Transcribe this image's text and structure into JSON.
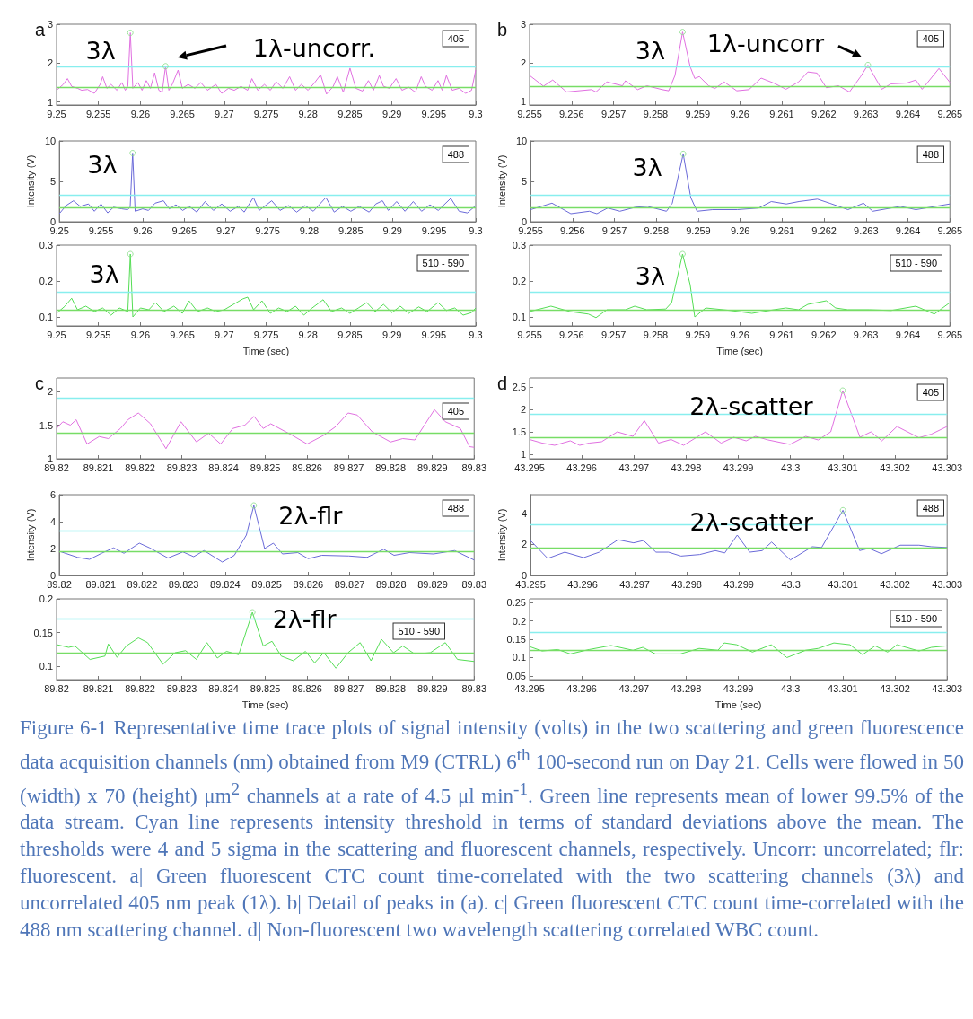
{
  "chart_data": [
    {
      "type": "line",
      "title": "a",
      "xlim": [
        9.25,
        9.3
      ],
      "xticks": [
        9.25,
        9.255,
        9.26,
        9.265,
        9.27,
        9.275,
        9.28,
        9.285,
        9.29,
        9.295,
        9.3
      ],
      "ylim": [
        0.92,
        3
      ],
      "yticks": [
        1,
        2,
        3
      ],
      "series": [
        {
          "color": "#e070e0",
          "marker": "none",
          "x": [
            9.25,
            9.2508,
            9.2513,
            9.2518,
            9.2525,
            9.253,
            9.2537,
            9.2545,
            9.2552,
            9.2555,
            9.256,
            9.2565,
            9.2572,
            9.2578,
            9.2582,
            9.2585,
            9.2588,
            9.2591,
            9.2597,
            9.2602,
            9.2607,
            9.2612,
            9.2617,
            9.2622,
            9.2626,
            9.263,
            9.2634,
            9.2638,
            9.2645,
            9.265,
            9.2657,
            9.2665,
            9.2672,
            9.268,
            9.269,
            9.2697,
            9.2705,
            9.2712,
            9.272,
            9.2728,
            9.2733,
            9.274,
            9.2748,
            9.2755,
            9.2762,
            9.277,
            9.2778,
            9.2785,
            9.2792,
            9.28,
            9.2808,
            9.2815,
            9.2822,
            9.283,
            9.2835,
            9.2842,
            9.285,
            9.2857,
            9.2865,
            9.2872,
            9.2878,
            9.2885,
            9.289,
            9.2897,
            9.2905,
            9.2912,
            9.292,
            9.2928,
            9.2935,
            9.294,
            9.2948,
            9.2955,
            9.296,
            9.2965,
            9.2972,
            9.298,
            9.2988,
            9.2995,
            9.3
          ],
          "values": [
            1.3,
            1.45,
            1.6,
            1.4,
            1.35,
            1.3,
            1.32,
            1.22,
            1.45,
            1.65,
            1.35,
            1.45,
            1.3,
            1.5,
            1.3,
            1.4,
            2.78,
            1.35,
            1.5,
            1.3,
            1.55,
            1.35,
            1.75,
            1.3,
            1.25,
            1.92,
            1.3,
            1.45,
            1.82,
            1.35,
            1.45,
            1.35,
            1.5,
            1.3,
            1.45,
            1.22,
            1.35,
            1.3,
            1.4,
            1.3,
            1.6,
            1.3,
            1.45,
            1.3,
            1.52,
            1.35,
            1.65,
            1.3,
            1.45,
            1.3,
            1.5,
            1.7,
            1.2,
            1.4,
            1.65,
            1.25,
            1.87,
            1.35,
            1.28,
            1.55,
            1.3,
            1.68,
            1.4,
            1.35,
            1.6,
            1.3,
            1.38,
            1.25,
            1.65,
            1.4,
            1.3,
            1.55,
            1.3,
            1.68,
            1.3,
            1.35,
            1.22,
            1.3,
            1.82
          ]
        },
        {
          "type": "scatter",
          "marker": "circle",
          "color": "#88dd88",
          "x": [
            9.2588,
            9.263
          ],
          "values": [
            2.78,
            1.92
          ]
        }
      ],
      "ref_lines": [
        {
          "axis": "y",
          "value": 1.9,
          "color": "#88eeee"
        },
        {
          "axis": "y",
          "value": 1.38,
          "color": "#77dd66"
        }
      ],
      "annotations": [
        {
          "text": "3λ",
          "x": 9.2588,
          "y": 2.78
        },
        "1λ-uncorr.",
        "405"
      ]
    },
    {
      "type": "line",
      "ylabel": "Intensity (V)",
      "xlim": [
        9.25,
        9.3
      ],
      "xticks": [
        9.25,
        9.255,
        9.26,
        9.265,
        9.27,
        9.275,
        9.28,
        9.285,
        9.29,
        9.295,
        9.3
      ],
      "ylim": [
        0,
        10
      ],
      "yticks": [
        0,
        5,
        10
      ],
      "series": [
        {
          "color": "#6a6ad8",
          "marker": "none",
          "x": [
            9.25,
            9.2508,
            9.2517,
            9.2525,
            9.2535,
            9.2542,
            9.255,
            9.2558,
            9.2565,
            9.2575,
            9.2582,
            9.2585,
            9.2588,
            9.2591,
            9.26,
            9.2607,
            9.2615,
            9.2625,
            9.2632,
            9.264,
            9.2648,
            9.2656,
            9.2665,
            9.2675,
            9.2685,
            9.2695,
            9.2705,
            9.2715,
            9.2722,
            9.2733,
            9.274,
            9.2755,
            9.2765,
            9.2775,
            9.2785,
            9.2795,
            9.2805,
            9.282,
            9.283,
            9.284,
            9.285,
            9.286,
            9.2872,
            9.288,
            9.2888,
            9.2895,
            9.2905,
            9.2915,
            9.2925,
            9.2935,
            9.2945,
            9.2955,
            9.297,
            9.298,
            9.299,
            9.3
          ],
          "values": [
            1.0,
            2.0,
            2.6,
            1.9,
            2.2,
            1.3,
            2.2,
            1.1,
            1.8,
            1.6,
            1.5,
            1.8,
            8.5,
            1.3,
            1.6,
            1.4,
            2.3,
            2.6,
            1.6,
            2.1,
            1.4,
            1.9,
            1.2,
            2.5,
            1.4,
            2.2,
            1.3,
            1.9,
            1.2,
            3.0,
            1.4,
            2.6,
            1.4,
            2.0,
            1.2,
            2.0,
            1.3,
            3.0,
            1.2,
            1.9,
            1.3,
            1.9,
            1.2,
            2.2,
            2.6,
            1.4,
            2.5,
            1.3,
            2.5,
            1.3,
            2.1,
            1.4,
            2.9,
            1.3,
            1.1,
            2.0
          ]
        },
        {
          "type": "scatter",
          "marker": "circle",
          "color": "#88dd88",
          "x": [
            9.2588
          ],
          "values": [
            8.5
          ]
        }
      ],
      "ref_lines": [
        {
          "axis": "y",
          "value": 3.3,
          "color": "#88eeee"
        },
        {
          "axis": "y",
          "value": 1.8,
          "color": "#77dd66"
        }
      ],
      "annotations": [
        {
          "text": "3λ",
          "x": 9.2588,
          "y": 8.5
        },
        "488"
      ]
    },
    {
      "type": "line",
      "xlabel": "Time (sec)",
      "xlim": [
        9.25,
        9.3
      ],
      "xticks": [
        9.25,
        9.255,
        9.26,
        9.265,
        9.27,
        9.275,
        9.28,
        9.285,
        9.29,
        9.295,
        9.3
      ],
      "ylim": [
        0.075,
        0.3
      ],
      "yticks": [
        0.1,
        0.2,
        0.3
      ],
      "series": [
        {
          "color": "#55dd55",
          "marker": "none",
          "x": [
            9.25,
            9.251,
            9.2518,
            9.2525,
            9.2535,
            9.2545,
            9.2555,
            9.2565,
            9.2575,
            9.2585,
            9.2588,
            9.2591,
            9.26,
            9.261,
            9.2618,
            9.2628,
            9.264,
            9.265,
            9.2658,
            9.2668,
            9.268,
            9.269,
            9.27,
            9.2722,
            9.2728,
            9.2735,
            9.2745,
            9.2755,
            9.2765,
            9.2775,
            9.2785,
            9.2795,
            9.2805,
            9.2818,
            9.2828,
            9.284,
            9.285,
            9.286,
            9.287,
            9.288,
            9.289,
            9.29,
            9.291,
            9.292,
            9.2932,
            9.2942,
            9.2955,
            9.2965,
            9.2975,
            9.2985,
            9.2995,
            9.3
          ],
          "values": [
            0.11,
            0.13,
            0.152,
            0.12,
            0.13,
            0.115,
            0.125,
            0.105,
            0.125,
            0.115,
            0.275,
            0.1,
            0.125,
            0.12,
            0.14,
            0.115,
            0.13,
            0.11,
            0.145,
            0.115,
            0.125,
            0.115,
            0.12,
            0.15,
            0.155,
            0.12,
            0.145,
            0.11,
            0.125,
            0.115,
            0.13,
            0.105,
            0.125,
            0.148,
            0.115,
            0.125,
            0.11,
            0.125,
            0.14,
            0.115,
            0.135,
            0.112,
            0.13,
            0.11,
            0.128,
            0.115,
            0.14,
            0.118,
            0.125,
            0.105,
            0.112,
            0.125
          ]
        },
        {
          "type": "scatter",
          "marker": "circle",
          "color": "#88dd88",
          "x": [
            9.2588
          ],
          "values": [
            0.275
          ]
        }
      ],
      "ref_lines": [
        {
          "axis": "y",
          "value": 0.171,
          "color": "#88eeee"
        },
        {
          "axis": "y",
          "value": 0.122,
          "color": "#77dd66"
        }
      ],
      "annotations": [
        {
          "text": "3λ",
          "x": 9.2588,
          "y": 0.275
        },
        "510 - 590"
      ]
    },
    {
      "type": "line",
      "title": "b",
      "xlim": [
        9.255,
        9.265
      ],
      "xticks": [
        9.255,
        9.256,
        9.257,
        9.258,
        9.259,
        9.26,
        9.261,
        9.262,
        9.263,
        9.264,
        9.265
      ],
      "ylim": [
        0.9,
        3
      ],
      "yticks": [
        1,
        2,
        3
      ],
      "series": [
        {
          "color": "#e070e0",
          "marker": "none",
          "x": [
            9.255,
            9.25533,
            9.25555,
            9.25588,
            9.25647,
            9.25658,
            9.25684,
            9.25721,
            9.25728,
            9.25757,
            9.25779,
            9.25816,
            9.25831,
            9.25846,
            9.25864,
            9.25882,
            9.25893,
            9.25904,
            9.25926,
            9.25941,
            9.25963,
            9.25993,
            9.26022,
            9.26051,
            9.26081,
            9.2611,
            9.2614,
            9.26162,
            9.26184,
            9.26206,
            9.26235,
            9.26261,
            9.26287,
            9.26305,
            9.26338,
            9.2636,
            9.26397,
            9.26419,
            9.26434,
            9.26474,
            9.265
          ],
          "values": [
            1.67,
            1.39,
            1.55,
            1.24,
            1.3,
            1.24,
            1.5,
            1.4,
            1.53,
            1.3,
            1.4,
            1.3,
            1.27,
            1.67,
            2.8,
            1.9,
            1.59,
            1.64,
            1.4,
            1.33,
            1.5,
            1.27,
            1.3,
            1.6,
            1.47,
            1.31,
            1.5,
            1.76,
            1.73,
            1.35,
            1.4,
            1.24,
            1.63,
            1.94,
            1.31,
            1.45,
            1.47,
            1.55,
            1.31,
            1.85,
            1.49
          ]
        },
        {
          "type": "scatter",
          "marker": "circle",
          "color": "#88dd88",
          "x": [
            9.25864,
            9.26305
          ],
          "values": [
            2.8,
            1.94
          ]
        }
      ],
      "ref_lines": [
        {
          "axis": "y",
          "value": 1.9,
          "color": "#88eeee"
        },
        {
          "axis": "y",
          "value": 1.38,
          "color": "#77dd66"
        }
      ],
      "annotations": [
        {
          "text": "3λ",
          "x": 9.25864,
          "y": 2.8
        },
        {
          "text": "1λ-uncorr",
          "x": 9.26305,
          "y": 1.94
        },
        "405"
      ]
    },
    {
      "type": "line",
      "ylabel": "Intensity (V)",
      "xlim": [
        9.255,
        9.265
      ],
      "xticks": [
        9.255,
        9.256,
        9.257,
        9.258,
        9.259,
        9.26,
        9.261,
        9.262,
        9.263,
        9.264,
        9.265
      ],
      "ylim": [
        0,
        10
      ],
      "yticks": [
        0,
        5,
        10
      ],
      "series": [
        {
          "color": "#6a6ad8",
          "marker": "none",
          "x": [
            9.255,
            9.25551,
            9.25596,
            9.2564,
            9.25658,
            9.25684,
            9.25713,
            9.2575,
            9.25779,
            9.25824,
            9.25838,
            9.25864,
            9.25882,
            9.25897,
            9.25934,
            9.25993,
            9.26044,
            9.26074,
            9.2611,
            9.2614,
            9.26184,
            9.26213,
            9.26257,
            9.26294,
            9.26316,
            9.26382,
            9.26419,
            9.265
          ],
          "values": [
            1.5,
            2.3,
            1.0,
            1.3,
            1.0,
            1.7,
            1.3,
            1.8,
            1.9,
            1.3,
            2.3,
            8.4,
            3.0,
            1.3,
            1.5,
            1.5,
            1.7,
            2.5,
            2.2,
            2.5,
            2.8,
            2.3,
            1.5,
            2.3,
            1.3,
            1.9,
            1.5,
            2.2
          ]
        },
        {
          "type": "scatter",
          "marker": "circle",
          "color": "#88dd88",
          "x": [
            9.25864
          ],
          "values": [
            8.4
          ]
        }
      ],
      "ref_lines": [
        {
          "axis": "y",
          "value": 3.3,
          "color": "#88eeee"
        },
        {
          "axis": "y",
          "value": 1.8,
          "color": "#77dd66"
        }
      ],
      "annotations": [
        {
          "text": "3λ",
          "x": 9.25864,
          "y": 8.4
        },
        "488"
      ]
    },
    {
      "type": "line",
      "xlabel": "Time (sec)",
      "xlim": [
        9.255,
        9.265
      ],
      "xticks": [
        9.255,
        9.256,
        9.257,
        9.258,
        9.259,
        9.26,
        9.261,
        9.262,
        9.263,
        9.264,
        9.265
      ],
      "ylim": [
        0.075,
        0.3
      ],
      "yticks": [
        0.1,
        0.2,
        0.3
      ],
      "series": [
        {
          "color": "#55dd55",
          "marker": "none",
          "x": [
            9.255,
            9.25551,
            9.25596,
            9.2564,
            9.25658,
            9.25684,
            9.25728,
            9.2575,
            9.25779,
            9.25824,
            9.25838,
            9.25864,
            9.25882,
            9.25893,
            9.25919,
            9.25978,
            9.26029,
            9.26081,
            9.2611,
            9.2614,
            9.26162,
            9.26206,
            9.26228,
            9.26257,
            9.26309,
            9.2636,
            9.26419,
            9.26463,
            9.265
          ],
          "values": [
            0.115,
            0.13,
            0.115,
            0.108,
            0.098,
            0.12,
            0.12,
            0.13,
            0.12,
            0.122,
            0.14,
            0.275,
            0.19,
            0.1,
            0.125,
            0.118,
            0.11,
            0.12,
            0.125,
            0.12,
            0.135,
            0.145,
            0.125,
            0.12,
            0.12,
            0.118,
            0.13,
            0.108,
            0.14
          ]
        },
        {
          "type": "scatter",
          "marker": "circle",
          "color": "#88dd88",
          "x": [
            9.25864
          ],
          "values": [
            0.275
          ]
        }
      ],
      "ref_lines": [
        {
          "axis": "y",
          "value": 0.171,
          "color": "#88eeee"
        },
        {
          "axis": "y",
          "value": 0.122,
          "color": "#77dd66"
        }
      ],
      "annotations": [
        {
          "text": "3λ",
          "x": 9.25864,
          "y": 0.275
        },
        "510 - 590"
      ]
    },
    {
      "type": "line",
      "title": "c",
      "xlim": [
        89.82,
        89.83
      ],
      "xticks": [
        89.82,
        89.821,
        89.822,
        89.823,
        89.824,
        89.825,
        89.826,
        89.827,
        89.828,
        89.829,
        89.83
      ],
      "ylim": [
        1,
        2.2
      ],
      "yticks": [
        1,
        1.5,
        2
      ],
      "series": [
        {
          "color": "#e070e0",
          "marker": "none",
          "x": [
            89.82,
            89.82015,
            89.82033,
            89.82047,
            89.82073,
            89.82102,
            89.82124,
            89.82153,
            89.82171,
            89.82196,
            89.82225,
            89.82262,
            89.82298,
            89.82335,
            89.82364,
            89.82393,
            89.82422,
            89.82451,
            89.82473,
            89.82495,
            89.82513,
            89.82564,
            89.826,
            89.8264,
            89.82669,
            89.82698,
            89.8272,
            89.82756,
            89.828,
            89.82829,
            89.82858,
            89.82905,
            89.82931,
            89.82967,
            89.82989,
            89.83
          ],
          "values": [
            1.45,
            1.55,
            1.5,
            1.58,
            1.22,
            1.33,
            1.3,
            1.45,
            1.58,
            1.68,
            1.52,
            1.15,
            1.55,
            1.25,
            1.38,
            1.22,
            1.45,
            1.5,
            1.63,
            1.45,
            1.52,
            1.35,
            1.22,
            1.35,
            1.48,
            1.68,
            1.65,
            1.4,
            1.25,
            1.3,
            1.28,
            1.73,
            1.55,
            1.45,
            1.18,
            1.17
          ]
        }
      ],
      "ref_lines": [
        {
          "axis": "y",
          "value": 1.9,
          "color": "#88eeee"
        },
        {
          "axis": "y",
          "value": 1.38,
          "color": "#77dd66"
        }
      ],
      "annotations": [
        "405"
      ]
    },
    {
      "type": "line",
      "ylabel": "Intensity (V)",
      "xlim": [
        89.82,
        89.83
      ],
      "xticks": [
        89.82,
        89.821,
        89.822,
        89.823,
        89.824,
        89.825,
        89.826,
        89.827,
        89.828,
        89.829,
        89.83
      ],
      "ylim": [
        0,
        6
      ],
      "yticks": [
        0,
        2,
        4,
        6
      ],
      "series": [
        {
          "color": "#6a6ad8",
          "marker": "none",
          "x": [
            89.82,
            89.82044,
            89.82073,
            89.82102,
            89.82131,
            89.82156,
            89.82193,
            89.82218,
            89.82262,
            89.82298,
            89.82324,
            89.82349,
            89.82393,
            89.82422,
            89.82451,
            89.82469,
            89.82495,
            89.82516,
            89.82538,
            89.82575,
            89.826,
            89.82633,
            89.82698,
            89.82742,
            89.82782,
            89.82807,
            89.82844,
            89.82902,
            89.82953,
            89.83
          ],
          "values": [
            1.8,
            1.35,
            1.2,
            1.65,
            2.05,
            1.65,
            2.4,
            2.05,
            1.3,
            1.75,
            1.4,
            1.85,
            1.0,
            1.5,
            3.0,
            5.2,
            2.0,
            2.4,
            1.6,
            1.7,
            1.25,
            1.5,
            1.45,
            1.35,
            1.95,
            1.5,
            1.7,
            1.6,
            1.85,
            1.15
          ]
        },
        {
          "type": "scatter",
          "marker": "circle",
          "color": "#88dd88",
          "x": [
            89.82469
          ],
          "values": [
            5.2
          ]
        }
      ],
      "ref_lines": [
        {
          "axis": "y",
          "value": 3.3,
          "color": "#88eeee"
        },
        {
          "axis": "y",
          "value": 1.8,
          "color": "#77dd66"
        }
      ],
      "annotations": [
        {
          "text": "2λ-flr",
          "x": 89.82469,
          "y": 5.2
        },
        "488"
      ]
    },
    {
      "type": "line",
      "xlabel": "Time (sec)",
      "xlim": [
        89.82,
        89.83
      ],
      "xticks": [
        89.82,
        89.821,
        89.822,
        89.823,
        89.824,
        89.825,
        89.826,
        89.827,
        89.828,
        89.829,
        89.83
      ],
      "ylim": [
        0.08,
        0.2
      ],
      "yticks": [
        0.1,
        0.15,
        0.2
      ],
      "series": [
        {
          "color": "#55dd55",
          "marker": "none",
          "x": [
            89.82,
            89.82029,
            89.82044,
            89.8208,
            89.82116,
            89.82124,
            89.82145,
            89.82167,
            89.82196,
            89.82218,
            89.82255,
            89.82284,
            89.82309,
            89.82335,
            89.8236,
            89.82385,
            89.82407,
            89.82436,
            89.82469,
            89.82495,
            89.82516,
            89.82538,
            89.82567,
            89.82596,
            89.82618,
            89.8264,
            89.82669,
            89.82698,
            89.82727,
            89.82753,
            89.82778,
            89.82807,
            89.82829,
            89.82858,
            89.82895,
            89.82931,
            89.8296,
            89.83
          ],
          "values": [
            0.132,
            0.128,
            0.13,
            0.11,
            0.115,
            0.133,
            0.113,
            0.13,
            0.142,
            0.135,
            0.103,
            0.12,
            0.123,
            0.11,
            0.135,
            0.112,
            0.122,
            0.117,
            0.18,
            0.13,
            0.137,
            0.115,
            0.108,
            0.122,
            0.105,
            0.12,
            0.097,
            0.12,
            0.135,
            0.108,
            0.14,
            0.12,
            0.13,
            0.118,
            0.12,
            0.135,
            0.11,
            0.107
          ]
        },
        {
          "type": "scatter",
          "marker": "circle",
          "color": "#88dd88",
          "x": [
            89.82469
          ],
          "values": [
            0.18
          ]
        }
      ],
      "ref_lines": [
        {
          "axis": "y",
          "value": 0.171,
          "color": "#88eeee"
        },
        {
          "axis": "y",
          "value": 0.12,
          "color": "#77dd66"
        }
      ],
      "annotations": [
        {
          "text": "2λ-flr",
          "x": 89.82469,
          "y": 0.18
        },
        "510 - 590"
      ]
    },
    {
      "type": "line",
      "title": "d",
      "xlim": [
        43.295,
        43.303
      ],
      "xticks": [
        43.295,
        43.296,
        43.297,
        43.298,
        43.299,
        43.3,
        43.301,
        43.302,
        43.303
      ],
      "ylim": [
        0.9,
        2.7
      ],
      "yticks": [
        1,
        1.5,
        2,
        2.5
      ],
      "series": [
        {
          "color": "#e070e0",
          "marker": "none",
          "x": [
            43.295,
            43.29524,
            43.29548,
            43.29578,
            43.29596,
            43.29614,
            43.29638,
            43.29668,
            43.29698,
            43.2972,
            43.29747,
            43.29771,
            43.29795,
            43.29837,
            43.29867,
            43.29891,
            43.29915,
            43.29933,
            43.29957,
            43.29999,
            43.30029,
            43.30053,
            43.30077,
            43.301,
            43.30133,
            43.30154,
            43.30175,
            43.30204,
            43.30246,
            43.3027,
            43.303
          ],
          "values": [
            1.33,
            1.25,
            1.2,
            1.3,
            1.2,
            1.25,
            1.28,
            1.5,
            1.4,
            1.75,
            1.25,
            1.33,
            1.2,
            1.5,
            1.25,
            1.38,
            1.3,
            1.4,
            1.32,
            1.22,
            1.4,
            1.32,
            1.5,
            2.42,
            1.38,
            1.5,
            1.3,
            1.62,
            1.37,
            1.45,
            1.62
          ]
        },
        {
          "type": "scatter",
          "marker": "circle",
          "color": "#88dd88",
          "x": [
            43.301
          ],
          "values": [
            2.42
          ]
        }
      ],
      "ref_lines": [
        {
          "axis": "y",
          "value": 1.9,
          "color": "#88eeee"
        },
        {
          "axis": "y",
          "value": 1.38,
          "color": "#77dd66"
        }
      ],
      "annotations": [
        {
          "text": "2λ-scatter",
          "x": 43.301,
          "y": 2.42
        },
        "405"
      ]
    },
    {
      "type": "line",
      "ylabel": "Intensity (V)",
      "xlim": [
        43.295,
        43.303
      ],
      "xticks": [
        43.295,
        43.296,
        43.297,
        43.298,
        43.299,
        43.3,
        43.301,
        43.302,
        43.303
      ],
      "ylim": [
        0,
        5.2
      ],
      "yticks": [
        0,
        2,
        4
      ],
      "series": [
        {
          "color": "#6a6ad8",
          "marker": "none",
          "x": [
            43.295,
            43.29533,
            43.29566,
            43.29602,
            43.29632,
            43.29668,
            43.29698,
            43.29717,
            43.29741,
            43.29765,
            43.29789,
            43.29825,
            43.29855,
            43.29873,
            43.29897,
            43.29921,
            43.29945,
            43.29963,
            43.29999,
            43.30041,
            43.30059,
            43.301,
            43.30132,
            43.3015,
            43.30174,
            43.3021,
            43.30246,
            43.3027,
            43.303
          ],
          "values": [
            2.25,
            1.1,
            1.5,
            1.15,
            1.5,
            2.3,
            2.1,
            2.25,
            1.5,
            1.5,
            1.25,
            1.35,
            1.6,
            1.45,
            2.6,
            1.5,
            1.6,
            2.15,
            1.0,
            1.85,
            1.8,
            4.2,
            1.6,
            1.75,
            1.4,
            1.95,
            1.95,
            1.85,
            1.8
          ]
        },
        {
          "type": "scatter",
          "marker": "circle",
          "color": "#88dd88",
          "x": [
            43.301
          ],
          "values": [
            4.2
          ]
        }
      ],
      "ref_lines": [
        {
          "axis": "y",
          "value": 3.3,
          "color": "#88eeee"
        },
        {
          "axis": "y",
          "value": 1.8,
          "color": "#77dd66"
        }
      ],
      "annotations": [
        {
          "text": "2λ-scatter",
          "x": 43.301,
          "y": 4.2
        },
        "488"
      ]
    },
    {
      "type": "line",
      "xlabel": "Time (sec)",
      "xlim": [
        43.295,
        43.303
      ],
      "xticks": [
        43.295,
        43.296,
        43.297,
        43.298,
        43.299,
        43.3,
        43.301,
        43.302,
        43.303
      ],
      "ylim": [
        0.04,
        0.26
      ],
      "yticks": [
        0.05,
        0.1,
        0.15,
        0.2,
        0.25
      ],
      "series": [
        {
          "color": "#55dd55",
          "marker": "none",
          "x": [
            43.295,
            43.29524,
            43.29554,
            43.29578,
            43.29614,
            43.29656,
            43.29698,
            43.29717,
            43.29741,
            43.29789,
            43.29825,
            43.29861,
            43.29873,
            43.29897,
            43.29927,
            43.29963,
            43.29993,
            43.30029,
            43.30053,
            43.30083,
            43.30114,
            43.30138,
            43.30162,
            43.30186,
            43.30204,
            43.30246,
            43.3027,
            43.303
          ],
          "values": [
            0.13,
            0.118,
            0.122,
            0.11,
            0.122,
            0.133,
            0.12,
            0.128,
            0.11,
            0.11,
            0.125,
            0.12,
            0.14,
            0.135,
            0.115,
            0.135,
            0.1,
            0.12,
            0.125,
            0.14,
            0.135,
            0.108,
            0.132,
            0.115,
            0.135,
            0.118,
            0.128,
            0.132
          ]
        }
      ],
      "ref_lines": [
        {
          "axis": "y",
          "value": 0.171,
          "color": "#88eeee"
        },
        {
          "axis": "y",
          "value": 0.122,
          "color": "#77dd66"
        }
      ],
      "annotations": [
        "510 - 590"
      ]
    },
    {
      "type": "other",
      "annotations": [
        "Figure 6-1 Representative time trace plots of signal intensity (volts) in the two scattering and green fluorescence data acquisition channels (nm) obtained from M9 (CTRL) 6$^{th}$ 100-second run on Day 21. Cells were flowed in 50 (width) x 70 (height) μm$^{2}$ channels at a rate of 4.5 μl min$^{-1}$. Green line represents mean of lower 99.5% of the data stream. Cyan line represents intensity threshold in terms of standard deviations above the mean. The thresholds were 4 and 5 sigma in the scattering and fluorescent channels, respectively. Uncorr: uncorrelated; flr: fluorescent. a| Green fluorescent CTC count time-correlated with the two scattering channels (3λ) and uncorrelated 405 nm peak (1λ). b| Detail of peaks in (a). c| Green fluorescent CTC count time-correlated with the 488 nm scattering channel. d| Non-fluorescent two wavelength scattering correlated WBC count."
      ]
    }
  ]
}
